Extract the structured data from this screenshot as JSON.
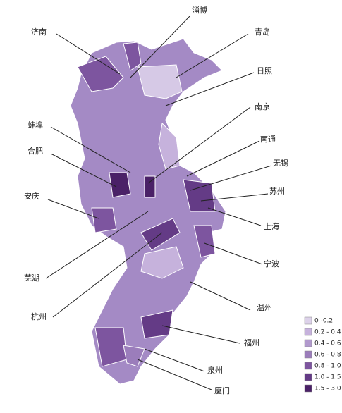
{
  "labels": [
    {
      "name": "淄博"
    },
    {
      "name": "青岛"
    },
    {
      "name": "济南"
    },
    {
      "name": "日照"
    },
    {
      "name": "南京"
    },
    {
      "name": "蚌埠"
    },
    {
      "name": "南通"
    },
    {
      "name": "合肥"
    },
    {
      "name": "无锡"
    },
    {
      "name": "苏州"
    },
    {
      "name": "安庆"
    },
    {
      "name": "上海"
    },
    {
      "name": "宁波"
    },
    {
      "name": "芜湖"
    },
    {
      "name": "温州"
    },
    {
      "name": "杭州"
    },
    {
      "name": "福州"
    },
    {
      "name": "泉州"
    },
    {
      "name": "厦门"
    }
  ],
  "legend": {
    "items": [
      {
        "label": "0 -0.2",
        "color": "#ddd2ea"
      },
      {
        "label": "0.2 - 0.4",
        "color": "#c6b2dc"
      },
      {
        "label": "0.4 - 0.6",
        "color": "#b199cd"
      },
      {
        "label": "0.6 - 0.8",
        "color": "#9b7dbb"
      },
      {
        "label": "0.8 - 1.0",
        "color": "#7d559f"
      },
      {
        "label": "1.0 - 1.5",
        "color": "#643b86"
      },
      {
        "label": "1.5 - 3.0",
        "color": "#4a2167"
      }
    ]
  }
}
